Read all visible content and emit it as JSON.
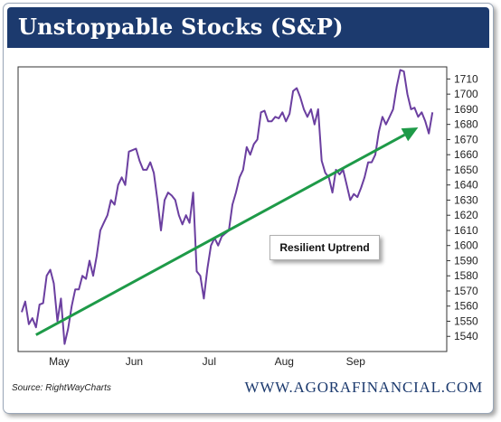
{
  "title": "Unstoppable Stocks (S&P)",
  "source": "Source: RightWayCharts",
  "website": "WWW.AGORAFINANCIAL.COM",
  "callout": "Resilient Uptrend",
  "colors": {
    "title_bg": "#1c3a6e",
    "line": "#6b3fa0",
    "trend": "#1e9a48"
  },
  "chart_data": {
    "type": "line",
    "title": "Unstoppable Stocks (S&P)",
    "ylim": [
      1530,
      1718
    ],
    "y_ticks": [
      1540,
      1550,
      1560,
      1570,
      1580,
      1590,
      1600,
      1610,
      1620,
      1630,
      1640,
      1650,
      1660,
      1670,
      1680,
      1690,
      1700,
      1710
    ],
    "x_tick_labels": [
      "May",
      "Jun",
      "Jul",
      "Aug",
      "Sep"
    ],
    "x_tick_positions": [
      10.5,
      31.5,
      52.5,
      73.5,
      93.5
    ],
    "x_range": [
      0,
      118
    ],
    "series": [
      {
        "values": [
          1556,
          1563,
          1548,
          1552,
          1546,
          1561,
          1562,
          1580,
          1584,
          1575,
          1550,
          1565,
          1535,
          1545,
          1560,
          1571,
          1571,
          1580,
          1578,
          1590,
          1580,
          1593,
          1610,
          1615,
          1620,
          1630,
          1627,
          1640,
          1645,
          1640,
          1662,
          1663,
          1664,
          1656,
          1650,
          1650,
          1655,
          1648,
          1630,
          1610,
          1630,
          1635,
          1633,
          1630,
          1620,
          1614,
          1620,
          1615,
          1635,
          1583,
          1580,
          1565,
          1585,
          1600,
          1605,
          1600,
          1606,
          1608,
          1610,
          1627,
          1635,
          1645,
          1650,
          1665,
          1660,
          1667,
          1670,
          1688,
          1689,
          1682,
          1682,
          1685,
          1684,
          1688,
          1682,
          1687,
          1702,
          1704,
          1698,
          1690,
          1685,
          1690,
          1680,
          1690,
          1656,
          1648,
          1645,
          1635,
          1650,
          1647,
          1650,
          1640,
          1630,
          1634,
          1632,
          1638,
          1645,
          1655,
          1655,
          1660,
          1675,
          1685,
          1680,
          1685,
          1690,
          1705,
          1716,
          1715,
          1700,
          1690,
          1691,
          1685,
          1688,
          1682,
          1674,
          1688
        ],
        "x": [
          0,
          1,
          2,
          3,
          4,
          5,
          6,
          7,
          8,
          9,
          10,
          11,
          12,
          13,
          14,
          15,
          16,
          17,
          18,
          19,
          20,
          21,
          22,
          23,
          24,
          25,
          26,
          27,
          28,
          29,
          30,
          31,
          32,
          33,
          34,
          35,
          36,
          37,
          38,
          39,
          40,
          41,
          42,
          43,
          44,
          45,
          46,
          47,
          48,
          49,
          50,
          51,
          52,
          53,
          54,
          55,
          56,
          57,
          58,
          59,
          60,
          61,
          62,
          63,
          64,
          65,
          66,
          67,
          68,
          69,
          70,
          71,
          72,
          73,
          74,
          75,
          76,
          77,
          78,
          79,
          80,
          81,
          82,
          83,
          84,
          85,
          86,
          87,
          88,
          89,
          90,
          91,
          92,
          93,
          94,
          95,
          96,
          97,
          98,
          99,
          100,
          101,
          102,
          103,
          104,
          105,
          106,
          107,
          108,
          109,
          110,
          111,
          112,
          113,
          114,
          115
        ]
      }
    ],
    "trend": {
      "x": [
        4,
        111
      ],
      "y": [
        1541,
        1678
      ]
    }
  }
}
